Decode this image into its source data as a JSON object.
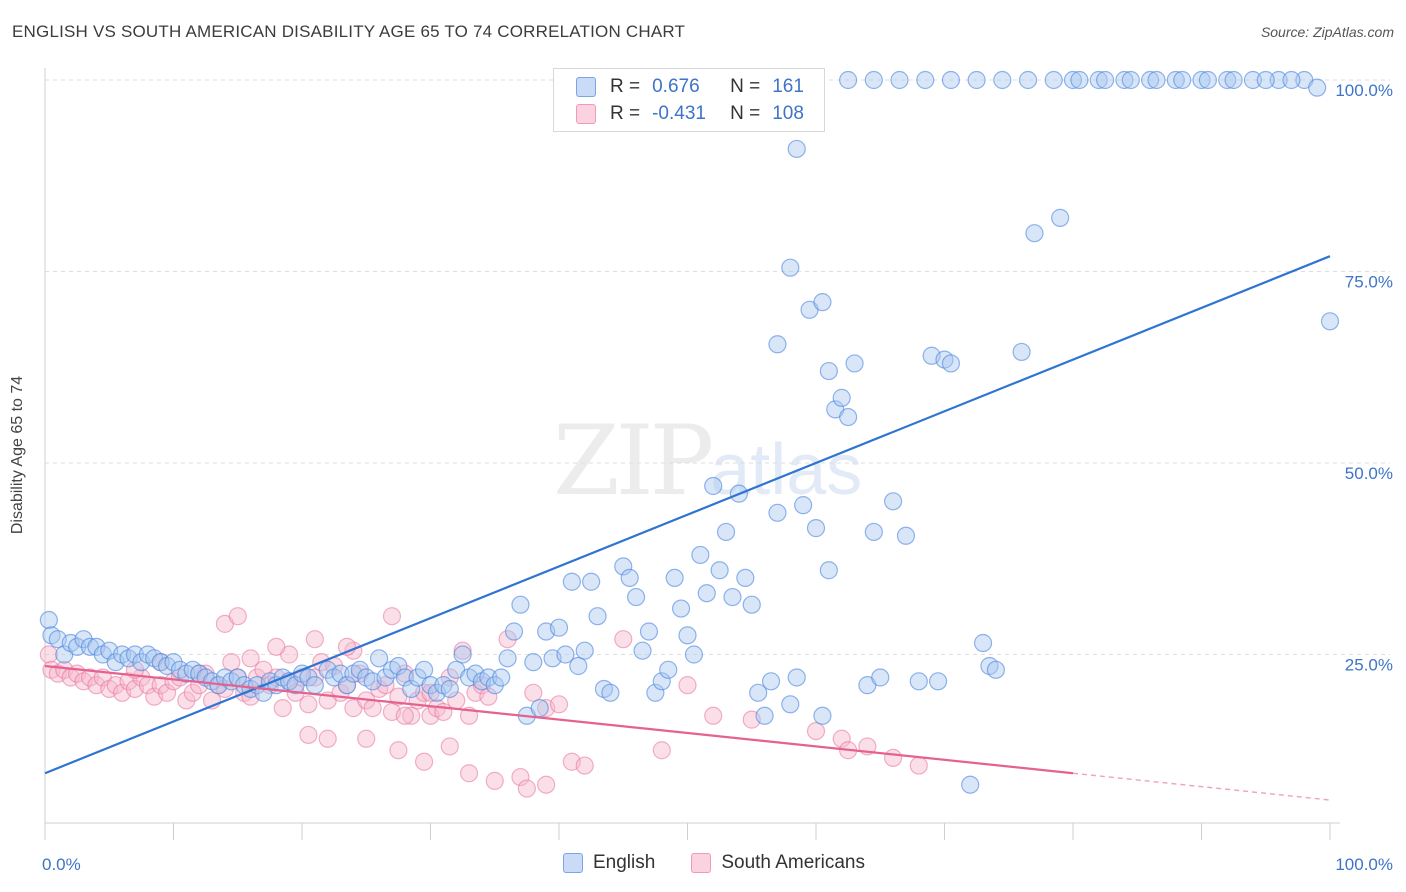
{
  "title": "ENGLISH VS SOUTH AMERICAN DISABILITY AGE 65 TO 74 CORRELATION CHART",
  "source": "Source: ZipAtlas.com",
  "watermark": {
    "zip": "ZIP",
    "atlas": "atlas"
  },
  "legend": {
    "rows": [
      {
        "r_label": "R =",
        "r_value": "0.676",
        "n_label": "N =",
        "n_value": "161",
        "color": "#8ab4f0"
      },
      {
        "r_label": "R =",
        "r_value": "-0.431",
        "n_label": "N =",
        "n_value": "108",
        "color": "#f5a6c0"
      }
    ]
  },
  "bottom_legend": [
    "English",
    "South Americans"
  ],
  "chart_data": {
    "type": "scatter",
    "title": "ENGLISH VS SOUTH AMERICAN DISABILITY AGE 65 TO 74 CORRELATION CHART",
    "xlabel": "",
    "ylabel": "Disability Age 65 to 74",
    "xlim": [
      0,
      100
    ],
    "ylim": [
      0,
      102
    ],
    "x_tick_labels": [
      "0.0%",
      "100.0%"
    ],
    "y_tick_labels": [
      "25.0%",
      "50.0%",
      "75.0%",
      "100.0%"
    ],
    "y_ticks": [
      25,
      50,
      75,
      100
    ],
    "grid": true,
    "colors": {
      "english": "#4a86e0",
      "english_fill": "#a9c7f0",
      "south": "#e8729c",
      "south_fill": "#f7b8cc"
    },
    "series": [
      {
        "name": "English",
        "trend": {
          "x": [
            0,
            100
          ],
          "y": [
            9.5,
            77
          ]
        },
        "points": [
          [
            0.3,
            29.5
          ],
          [
            0.5,
            27.5
          ],
          [
            1,
            27
          ],
          [
            1.5,
            25
          ],
          [
            2,
            26.5
          ],
          [
            2.5,
            26
          ],
          [
            3,
            27
          ],
          [
            3.5,
            26
          ],
          [
            4,
            26
          ],
          [
            4.5,
            25
          ],
          [
            5,
            25.5
          ],
          [
            5.5,
            24
          ],
          [
            6,
            25
          ],
          [
            6.5,
            24.5
          ],
          [
            7,
            25
          ],
          [
            7.5,
            24
          ],
          [
            8,
            25
          ],
          [
            8.5,
            24.5
          ],
          [
            9,
            24
          ],
          [
            9.5,
            23.5
          ],
          [
            10,
            24
          ],
          [
            10.5,
            23
          ],
          [
            11,
            22.5
          ],
          [
            11.5,
            23
          ],
          [
            12,
            22.5
          ],
          [
            12.5,
            22
          ],
          [
            13,
            21.5
          ],
          [
            13.5,
            21
          ],
          [
            14,
            22
          ],
          [
            14.5,
            21.5
          ],
          [
            15,
            22
          ],
          [
            15.5,
            21
          ],
          [
            16,
            20.5
          ],
          [
            16.5,
            21
          ],
          [
            17,
            20
          ],
          [
            17.5,
            21.5
          ],
          [
            18,
            21
          ],
          [
            18.5,
            22
          ],
          [
            19,
            21.5
          ],
          [
            19.5,
            21
          ],
          [
            20,
            22.5
          ],
          [
            20.5,
            22
          ],
          [
            21,
            21
          ],
          [
            22,
            23
          ],
          [
            22.5,
            22
          ],
          [
            23,
            22.5
          ],
          [
            23.5,
            21
          ],
          [
            24,
            22.5
          ],
          [
            24.5,
            23
          ],
          [
            25,
            22
          ],
          [
            25.5,
            21.5
          ],
          [
            26,
            24.5
          ],
          [
            26.5,
            22
          ],
          [
            27,
            23
          ],
          [
            27.5,
            23.5
          ],
          [
            28,
            22
          ],
          [
            28.5,
            20.5
          ],
          [
            29,
            22
          ],
          [
            29.5,
            23
          ],
          [
            30,
            21
          ],
          [
            30.5,
            20
          ],
          [
            31,
            21
          ],
          [
            31.5,
            20.5
          ],
          [
            32,
            23
          ],
          [
            32.5,
            25
          ],
          [
            33,
            22
          ],
          [
            33.5,
            22.5
          ],
          [
            34,
            21.5
          ],
          [
            34.5,
            22
          ],
          [
            35,
            21
          ],
          [
            35.5,
            22
          ],
          [
            36,
            24.5
          ],
          [
            36.5,
            28
          ],
          [
            37,
            31.5
          ],
          [
            37.5,
            17
          ],
          [
            38,
            24
          ],
          [
            38.5,
            18
          ],
          [
            39,
            28
          ],
          [
            39.5,
            24.5
          ],
          [
            40,
            28.5
          ],
          [
            40.5,
            25
          ],
          [
            41,
            34.5
          ],
          [
            41.5,
            23.5
          ],
          [
            42,
            25.5
          ],
          [
            42.5,
            34.5
          ],
          [
            43,
            30
          ],
          [
            43.5,
            20.5
          ],
          [
            44,
            20
          ],
          [
            45,
            36.5
          ],
          [
            45.5,
            35
          ],
          [
            46,
            32.5
          ],
          [
            46.5,
            25.5
          ],
          [
            47,
            28
          ],
          [
            47.5,
            20
          ],
          [
            48,
            21.5
          ],
          [
            48.5,
            23
          ],
          [
            49,
            35
          ],
          [
            49.5,
            31
          ],
          [
            50,
            27.5
          ],
          [
            50.5,
            25
          ],
          [
            51,
            38
          ],
          [
            51.5,
            33
          ],
          [
            52,
            47
          ],
          [
            52.5,
            36
          ],
          [
            53,
            41
          ],
          [
            53.5,
            32.5
          ],
          [
            54,
            46
          ],
          [
            54.5,
            35
          ],
          [
            55,
            31.5
          ],
          [
            55.5,
            20
          ],
          [
            56,
            17
          ],
          [
            56.5,
            21.5
          ],
          [
            57,
            43.5
          ],
          [
            58,
            18.5
          ],
          [
            58.5,
            22
          ],
          [
            59,
            44.5
          ],
          [
            60,
            41.5
          ],
          [
            60.5,
            17
          ],
          [
            61,
            36
          ],
          [
            61.5,
            57
          ],
          [
            62,
            58.5
          ],
          [
            62.5,
            56
          ],
          [
            63,
            63
          ],
          [
            64,
            21
          ],
          [
            64.5,
            41
          ],
          [
            65,
            22
          ],
          [
            66,
            45
          ],
          [
            67,
            40.5
          ],
          [
            68,
            21.5
          ],
          [
            69,
            64
          ],
          [
            69.5,
            21.5
          ],
          [
            70,
            63.5
          ],
          [
            70.5,
            63
          ],
          [
            72,
            8
          ],
          [
            73,
            26.5
          ],
          [
            73.5,
            23.5
          ],
          [
            74,
            23
          ],
          [
            76,
            64.5
          ],
          [
            77,
            80
          ],
          [
            79,
            82
          ],
          [
            80,
            100
          ],
          [
            82,
            100
          ],
          [
            84,
            100
          ],
          [
            86,
            100
          ],
          [
            88,
            100
          ],
          [
            90,
            100
          ],
          [
            92,
            100
          ],
          [
            94,
            100
          ],
          [
            96,
            100
          ],
          [
            98,
            100
          ],
          [
            99,
            99
          ],
          [
            100,
            68.5
          ],
          [
            55,
            100
          ],
          [
            57.5,
            100
          ],
          [
            58.5,
            91
          ],
          [
            58,
            75.5
          ],
          [
            57,
            65.5
          ],
          [
            59.5,
            70
          ],
          [
            60.5,
            71
          ],
          [
            61,
            62
          ],
          [
            62.5,
            100
          ],
          [
            64.5,
            100
          ],
          [
            66.5,
            100
          ],
          [
            68.5,
            100
          ],
          [
            70.5,
            100
          ],
          [
            72.5,
            100
          ],
          [
            74.5,
            100
          ],
          [
            76.5,
            100
          ],
          [
            78.5,
            100
          ],
          [
            80.5,
            100
          ],
          [
            82.5,
            100
          ],
          [
            84.5,
            100
          ],
          [
            86.5,
            100
          ],
          [
            88.5,
            100
          ],
          [
            90.5,
            100
          ],
          [
            92.5,
            100
          ],
          [
            95,
            100
          ],
          [
            97,
            100
          ]
        ]
      },
      {
        "name": "South Americans",
        "trend": {
          "x": [
            0,
            80
          ],
          "y": [
            23.5,
            9.5
          ]
        },
        "trend_dashed": {
          "x": [
            80,
            100
          ],
          "y": [
            9.5,
            6
          ]
        },
        "points": [
          [
            0.3,
            25
          ],
          [
            0.5,
            23
          ],
          [
            1,
            22.5
          ],
          [
            1.5,
            23
          ],
          [
            2,
            22
          ],
          [
            2.5,
            22.5
          ],
          [
            3,
            21.5
          ],
          [
            3.5,
            22
          ],
          [
            4,
            21
          ],
          [
            4.5,
            22
          ],
          [
            5,
            20.5
          ],
          [
            5.5,
            21
          ],
          [
            6,
            20
          ],
          [
            6.5,
            21.5
          ],
          [
            7,
            20.5
          ],
          [
            7.5,
            22
          ],
          [
            8,
            21
          ],
          [
            8.5,
            19.5
          ],
          [
            9,
            21
          ],
          [
            9.5,
            20
          ],
          [
            10,
            21.5
          ],
          [
            10.5,
            22
          ],
          [
            11,
            19
          ],
          [
            11.5,
            20
          ],
          [
            12,
            21
          ],
          [
            12.5,
            22.5
          ],
          [
            13,
            19
          ],
          [
            13.5,
            21
          ],
          [
            14,
            20.5
          ],
          [
            14.5,
            24
          ],
          [
            15,
            22
          ],
          [
            15.5,
            20
          ],
          [
            16,
            19.5
          ],
          [
            16.5,
            22
          ],
          [
            17,
            23
          ],
          [
            17.5,
            21
          ],
          [
            18,
            22
          ],
          [
            18.5,
            18
          ],
          [
            19,
            21.5
          ],
          [
            19.5,
            20
          ],
          [
            20,
            22
          ],
          [
            20.5,
            18.5
          ],
          [
            21,
            22
          ],
          [
            21.5,
            24
          ],
          [
            22,
            19
          ],
          [
            22.5,
            23.5
          ],
          [
            23,
            20
          ],
          [
            23.5,
            21
          ],
          [
            24,
            18
          ],
          [
            24.5,
            22.5
          ],
          [
            25,
            19
          ],
          [
            25.5,
            18
          ],
          [
            26,
            20.5
          ],
          [
            26.5,
            21
          ],
          [
            27,
            17.5
          ],
          [
            27.5,
            19.5
          ],
          [
            28,
            22.5
          ],
          [
            28.5,
            17
          ],
          [
            29,
            19
          ],
          [
            29.5,
            20
          ],
          [
            30,
            17
          ],
          [
            30.5,
            18
          ],
          [
            31,
            17.5
          ],
          [
            31.5,
            22
          ],
          [
            32,
            19
          ],
          [
            32.5,
            25.5
          ],
          [
            33,
            17
          ],
          [
            33.5,
            20
          ],
          [
            34,
            21
          ],
          [
            34.5,
            19.5
          ],
          [
            36,
            27
          ],
          [
            37,
            9
          ],
          [
            38,
            20
          ],
          [
            39,
            18
          ],
          [
            40,
            18.5
          ],
          [
            41,
            11
          ],
          [
            42,
            10.5
          ],
          [
            45,
            27
          ],
          [
            48,
            12.5
          ],
          [
            50,
            21
          ],
          [
            52,
            17
          ],
          [
            55,
            16.5
          ],
          [
            60,
            15
          ],
          [
            62,
            14
          ],
          [
            64,
            13
          ],
          [
            66,
            11.5
          ],
          [
            68,
            10.5
          ],
          [
            62.5,
            12.5
          ],
          [
            14,
            29
          ],
          [
            15,
            30
          ],
          [
            27,
            30
          ],
          [
            30,
            20
          ],
          [
            24,
            25.5
          ],
          [
            19,
            25
          ],
          [
            20.5,
            14.5
          ],
          [
            22,
            14
          ],
          [
            25,
            14
          ],
          [
            27.5,
            12.5
          ],
          [
            29.5,
            11
          ],
          [
            31.5,
            13
          ],
          [
            33,
            9.5
          ],
          [
            35,
            8.5
          ],
          [
            37.5,
            7.5
          ],
          [
            39,
            8
          ],
          [
            28,
            17
          ],
          [
            21,
            27
          ],
          [
            23.5,
            26
          ],
          [
            18,
            26
          ],
          [
            16,
            24.5
          ],
          [
            12,
            22.5
          ],
          [
            9,
            24
          ],
          [
            7,
            23
          ]
        ]
      }
    ]
  }
}
